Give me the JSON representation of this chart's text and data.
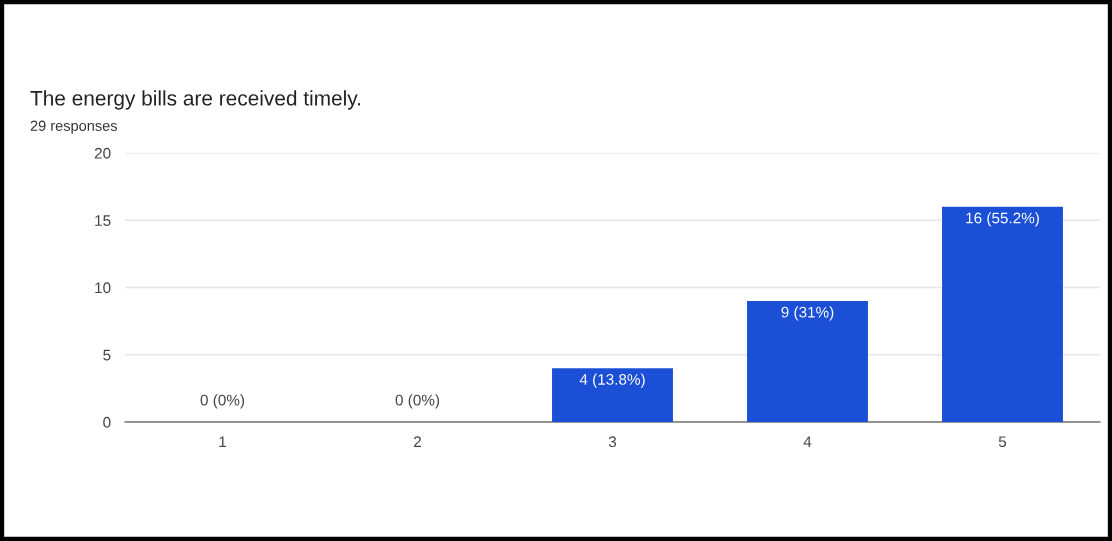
{
  "chart_data": {
    "type": "bar",
    "title": "The energy bills are received timely.",
    "subtitle": "29 responses",
    "categories": [
      "1",
      "2",
      "3",
      "4",
      "5"
    ],
    "values": [
      0,
      0,
      4,
      9,
      16
    ],
    "value_labels": [
      "0 (0%)",
      "0 (0%)",
      "4 (13.8%)",
      "9 (31%)",
      "16 (55.2%)"
    ],
    "color": "#1a4fd6",
    "ylim": [
      0,
      20
    ],
    "yticks": [
      0,
      5,
      10,
      15,
      20
    ],
    "grid": "y",
    "legend": false
  }
}
